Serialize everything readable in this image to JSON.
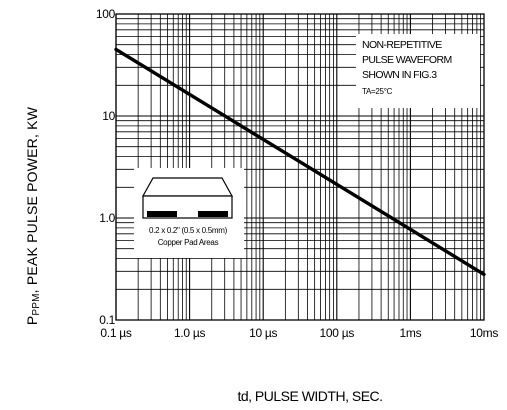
{
  "chart_data": {
    "type": "line",
    "xscale": "log",
    "yscale": "log",
    "x_unit": "seconds",
    "xlim": [
      1e-07,
      0.01
    ],
    "ylim": [
      0.1,
      100
    ],
    "grid": true,
    "xlabel": "td, PULSE WIDTH, SEC.",
    "ylabel_sub": "PPM",
    "ylabel": ", PEAK PULSE POWER, KW",
    "ylabel_prefix": "P",
    "x_tick_labels": [
      "0.1 µs",
      "1.0 µs",
      "10 µs",
      "100 µs",
      "1ms",
      "10ms"
    ],
    "y_tick_labels": [
      "100",
      "10",
      "1.0",
      "0.1"
    ],
    "series": [
      {
        "x": [
          1e-07,
          0.01
        ],
        "y": [
          45,
          0.28
        ]
      }
    ],
    "annotation": {
      "lines": [
        "NON-REPETITIVE",
        "PULSE WAVEFORM",
        "SHOWN IN FIG.3"
      ],
      "condition": "TA=25°C"
    },
    "inset": {
      "line1": "0.2 x 0.2\" (0.5 x 0.5mm)",
      "line2": "Copper Pad Areas"
    }
  }
}
